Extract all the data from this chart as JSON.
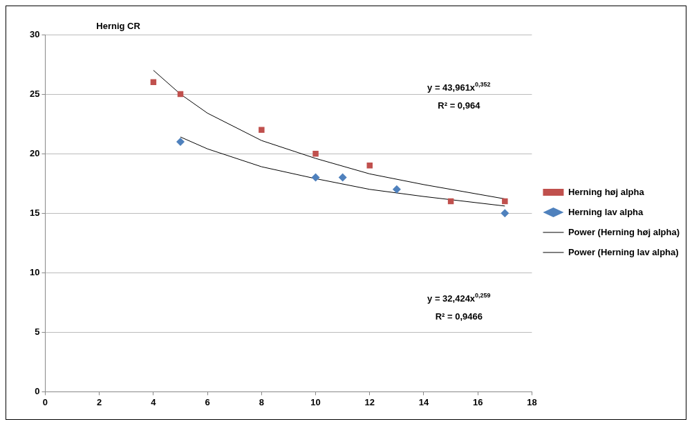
{
  "chart_data": {
    "type": "scatter",
    "title": "Hernig CR",
    "xlim": [
      0,
      18
    ],
    "xticks": [
      0,
      2,
      4,
      6,
      8,
      10,
      12,
      14,
      16,
      18
    ],
    "ylim": [
      0,
      30
    ],
    "yticks": [
      0,
      5,
      10,
      15,
      20,
      25,
      30
    ],
    "grid": "y",
    "legend": "right",
    "series": [
      {
        "name": "Herning høj alpha",
        "marker": "square",
        "color": "#c0504d",
        "x": [
          4,
          5,
          8,
          10,
          12,
          15,
          17
        ],
        "values": [
          26,
          25,
          22,
          20,
          19,
          16,
          16
        ]
      },
      {
        "name": "Herning lav alpha",
        "marker": "diamond",
        "color": "#4f81bd",
        "x": [
          5,
          10,
          11,
          13,
          17
        ],
        "values": [
          21,
          18,
          18,
          17,
          15
        ]
      },
      {
        "name": "Power (Herning høj alpha)",
        "type": "line",
        "marker": "none",
        "color": "#000000",
        "x": [
          4,
          5,
          6,
          8,
          10,
          12,
          14,
          17
        ],
        "values": [
          27.0,
          25.0,
          23.4,
          21.1,
          19.6,
          18.3,
          17.4,
          16.2
        ]
      },
      {
        "name": "Power (Herning lav alpha)",
        "type": "line",
        "marker": "none",
        "color": "#000000",
        "x": [
          5,
          6,
          8,
          10,
          12,
          14,
          17
        ],
        "values": [
          21.4,
          20.4,
          18.9,
          17.9,
          17.0,
          16.4,
          15.6
        ]
      }
    ],
    "annotations": [
      "y = 43,961x$^{0,352}$",
      "R² = 0,964",
      "y = 32,424x$^{0,259}$",
      "R² = 0,9466"
    ]
  }
}
